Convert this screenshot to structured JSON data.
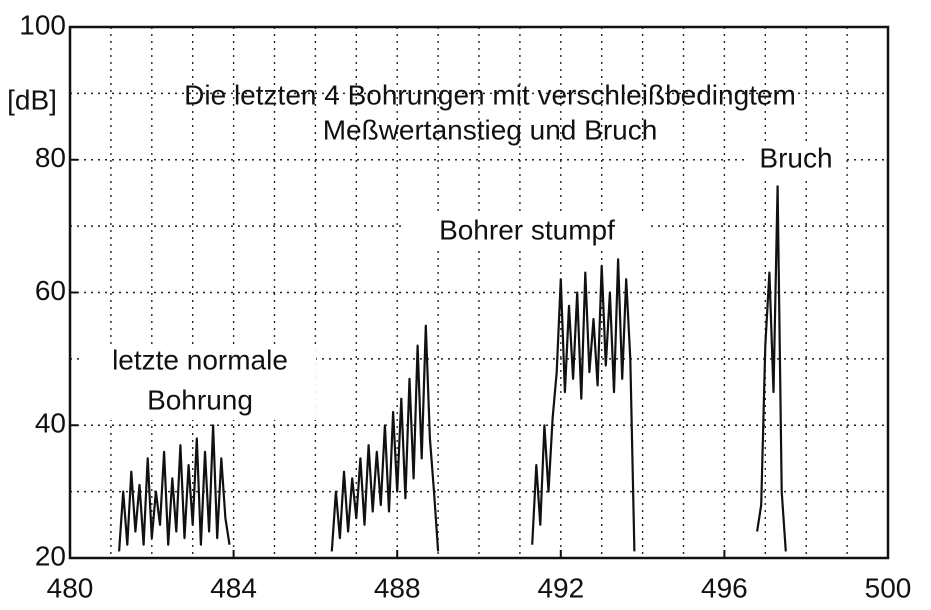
{
  "chart_data": {
    "type": "line",
    "title": [
      "Die letzten 4 Bohrungen mit verschleißbedingtem",
      "Meßwertanstieg und Bruch"
    ],
    "ylabel": "[dB]",
    "annotations": [
      [
        "letzte normale",
        "Bohrung"
      ],
      [
        "Bohrer stumpf"
      ],
      [
        "Bruch"
      ]
    ],
    "xlim": [
      480,
      500
    ],
    "ylim": [
      20,
      100
    ],
    "xticks": [
      480,
      484,
      488,
      492,
      496,
      500
    ],
    "yticks": [
      20,
      40,
      60,
      80,
      100
    ],
    "xgrid": [
      481,
      482,
      483,
      484,
      485,
      486,
      487,
      488,
      489,
      490,
      491,
      492,
      493,
      494,
      495,
      496,
      497,
      498,
      499
    ],
    "ygrid": [
      30,
      40,
      50,
      60,
      70,
      80,
      90
    ],
    "grid": true,
    "series": [
      {
        "color": "#111111",
        "x": [
          481.2,
          481.3,
          481.4,
          481.5,
          481.6,
          481.7,
          481.8,
          481.9,
          482.0,
          482.1,
          482.2,
          482.3,
          482.4,
          482.5,
          482.6,
          482.7,
          482.8,
          482.9,
          483.0,
          483.1,
          483.2,
          483.3,
          483.4,
          483.5,
          483.6,
          483.7,
          483.8,
          483.9,
          484.0,
          486.4,
          486.5,
          486.6,
          486.7,
          486.8,
          486.9,
          487.0,
          487.1,
          487.2,
          487.3,
          487.4,
          487.5,
          487.6,
          487.7,
          487.8,
          487.9,
          488.0,
          488.1,
          488.2,
          488.3,
          488.4,
          488.5,
          488.6,
          488.7,
          488.8,
          488.9,
          489.0,
          489.1,
          491.3,
          491.4,
          491.5,
          491.6,
          491.7,
          491.8,
          491.9,
          492.0,
          492.1,
          492.2,
          492.3,
          492.4,
          492.5,
          492.6,
          492.7,
          492.8,
          492.9,
          493.0,
          493.1,
          493.2,
          493.3,
          493.4,
          493.5,
          493.6,
          493.7,
          493.8,
          493.9,
          496.8,
          496.9,
          497.0,
          497.1,
          497.2,
          497.3,
          497.4,
          497.5
        ],
        "values": [
          21,
          30,
          22,
          33,
          24,
          31,
          22,
          35,
          23,
          30,
          25,
          36,
          22,
          32,
          24,
          37,
          23,
          34,
          25,
          38,
          22,
          36,
          24,
          40,
          23,
          35,
          26,
          22,
          null,
          21,
          30,
          23,
          33,
          24,
          32,
          26,
          35,
          25,
          37,
          27,
          36,
          28,
          40,
          27,
          42,
          30,
          44,
          29,
          47,
          32,
          52,
          35,
          55,
          38,
          30,
          21,
          null,
          22,
          34,
          25,
          40,
          30,
          41,
          48,
          62,
          45,
          58,
          47,
          60,
          44,
          63,
          48,
          56,
          46,
          64,
          49,
          60,
          45,
          65,
          47,
          62,
          50,
          21,
          null,
          24,
          28,
          52,
          63,
          45,
          76,
          30,
          21
        ]
      }
    ]
  }
}
